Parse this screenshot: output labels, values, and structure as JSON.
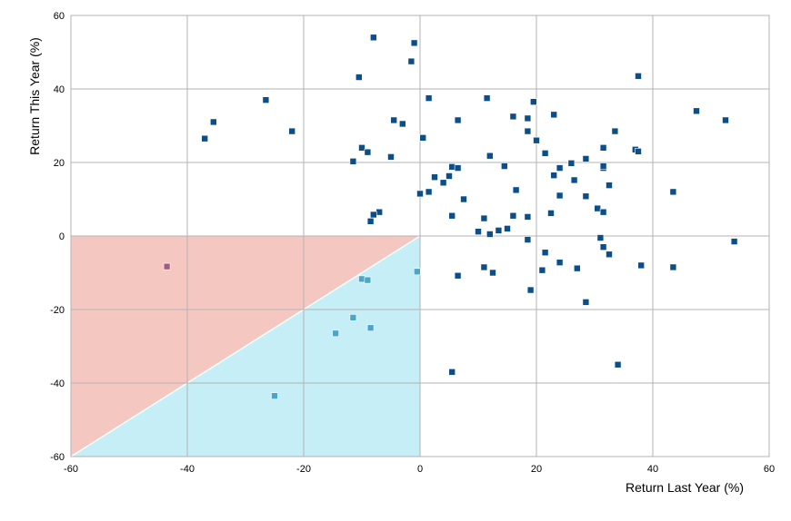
{
  "chart_data": {
    "type": "scatter",
    "title": "",
    "xlabel": "Return Last Year (%)",
    "ylabel": "Return This Year (%)",
    "xlim": [
      -60,
      60
    ],
    "ylim": [
      -60,
      60
    ],
    "xticks": [
      -60,
      -40,
      -20,
      0,
      20,
      40,
      60
    ],
    "yticks": [
      -60,
      -40,
      -20,
      0,
      20,
      40,
      60
    ],
    "grid": "horizontal and vertical gridlines",
    "legend": "none",
    "regions": [
      {
        "vertices": [
          [
            -60,
            0
          ],
          [
            0,
            0
          ],
          [
            -60,
            -60
          ]
        ],
        "color": "#f4c7c0"
      },
      {
        "vertices": [
          [
            -60,
            -60
          ],
          [
            0,
            0
          ],
          [
            0,
            -60
          ]
        ],
        "color": "#c6eef6"
      }
    ],
    "colors": {
      "quadrant_points": "#0b4f8a",
      "loss_points": "#4aa6c9",
      "outlier_point": "#a35c79"
    },
    "series": [
      {
        "color": "#0b4f8a",
        "points": [
          [
            -8,
            54
          ],
          [
            -1,
            52.5
          ],
          [
            -1.5,
            47.5
          ],
          [
            -10.5,
            43.2
          ],
          [
            37.5,
            43.5
          ],
          [
            1.5,
            37.5
          ],
          [
            11.5,
            37.5
          ],
          [
            -26.5,
            37
          ],
          [
            47.5,
            34
          ],
          [
            52.5,
            31.5
          ],
          [
            -35.5,
            31
          ],
          [
            -37,
            26.5
          ],
          [
            -22,
            28.5
          ],
          [
            -4.5,
            31.5
          ],
          [
            -3,
            30.5
          ],
          [
            6.5,
            31.5
          ],
          [
            16,
            32.5
          ],
          [
            18.5,
            32
          ],
          [
            19.5,
            36.5
          ],
          [
            23,
            33
          ],
          [
            33.5,
            28.5
          ],
          [
            0.5,
            26.7
          ],
          [
            18.5,
            28.5
          ],
          [
            20,
            26
          ],
          [
            37,
            23.5
          ],
          [
            37.5,
            23
          ],
          [
            31.5,
            24
          ],
          [
            -10,
            24
          ],
          [
            -9,
            22.8
          ],
          [
            -5,
            21.5
          ],
          [
            -11.5,
            20.3
          ],
          [
            12,
            21.8
          ],
          [
            21.5,
            22.5
          ],
          [
            26,
            19.8
          ],
          [
            28.5,
            21
          ],
          [
            31.5,
            18.5
          ],
          [
            31.5,
            19
          ],
          [
            14.5,
            19
          ],
          [
            5.5,
            18.8
          ],
          [
            6.5,
            18.5
          ],
          [
            2.5,
            16
          ],
          [
            5,
            16.3
          ],
          [
            4,
            14.5
          ],
          [
            23,
            16.5
          ],
          [
            24,
            18.5
          ],
          [
            26.5,
            15.2
          ],
          [
            32.5,
            13.8
          ],
          [
            43.5,
            12
          ],
          [
            16.5,
            12.5
          ],
          [
            24,
            11
          ],
          [
            28.5,
            10.8
          ],
          [
            0,
            11.5
          ],
          [
            1.5,
            12
          ],
          [
            7.5,
            10
          ],
          [
            30.5,
            7.5
          ],
          [
            31.5,
            6.5
          ],
          [
            22.5,
            6.2
          ],
          [
            -7,
            6.5
          ],
          [
            -8,
            5.8
          ],
          [
            -8.5,
            4
          ],
          [
            5.5,
            5.5
          ],
          [
            11,
            4.8
          ],
          [
            16,
            5.5
          ],
          [
            18.5,
            5.2
          ],
          [
            10,
            1.2
          ],
          [
            12,
            0.5
          ],
          [
            13.5,
            1.5
          ],
          [
            15,
            2
          ],
          [
            18.5,
            -1
          ],
          [
            31,
            -0.5
          ],
          [
            54,
            -1.5
          ],
          [
            31.5,
            -3
          ],
          [
            21.5,
            -4.5
          ],
          [
            32.5,
            -5
          ],
          [
            24,
            -7.2
          ],
          [
            21,
            -9.3
          ],
          [
            27,
            -8.8
          ],
          [
            38,
            -8
          ],
          [
            43.5,
            -8.5
          ],
          [
            6.5,
            -10.8
          ],
          [
            11,
            -8.5
          ],
          [
            12.5,
            -10
          ],
          [
            19,
            -14.7
          ],
          [
            28.5,
            -18
          ],
          [
            5.5,
            -37
          ],
          [
            34,
            -35
          ]
        ]
      },
      {
        "color": "#4aa6c9",
        "points": [
          [
            -0.5,
            -9.7
          ],
          [
            -10,
            -11.7
          ],
          [
            -9,
            -12
          ],
          [
            -11.5,
            -22.2
          ],
          [
            -14.5,
            -26.5
          ],
          [
            -8.5,
            -25
          ],
          [
            -25,
            -43.5
          ]
        ]
      },
      {
        "color": "#a35c79",
        "points": [
          [
            -43.5,
            -8.3
          ]
        ]
      }
    ]
  }
}
